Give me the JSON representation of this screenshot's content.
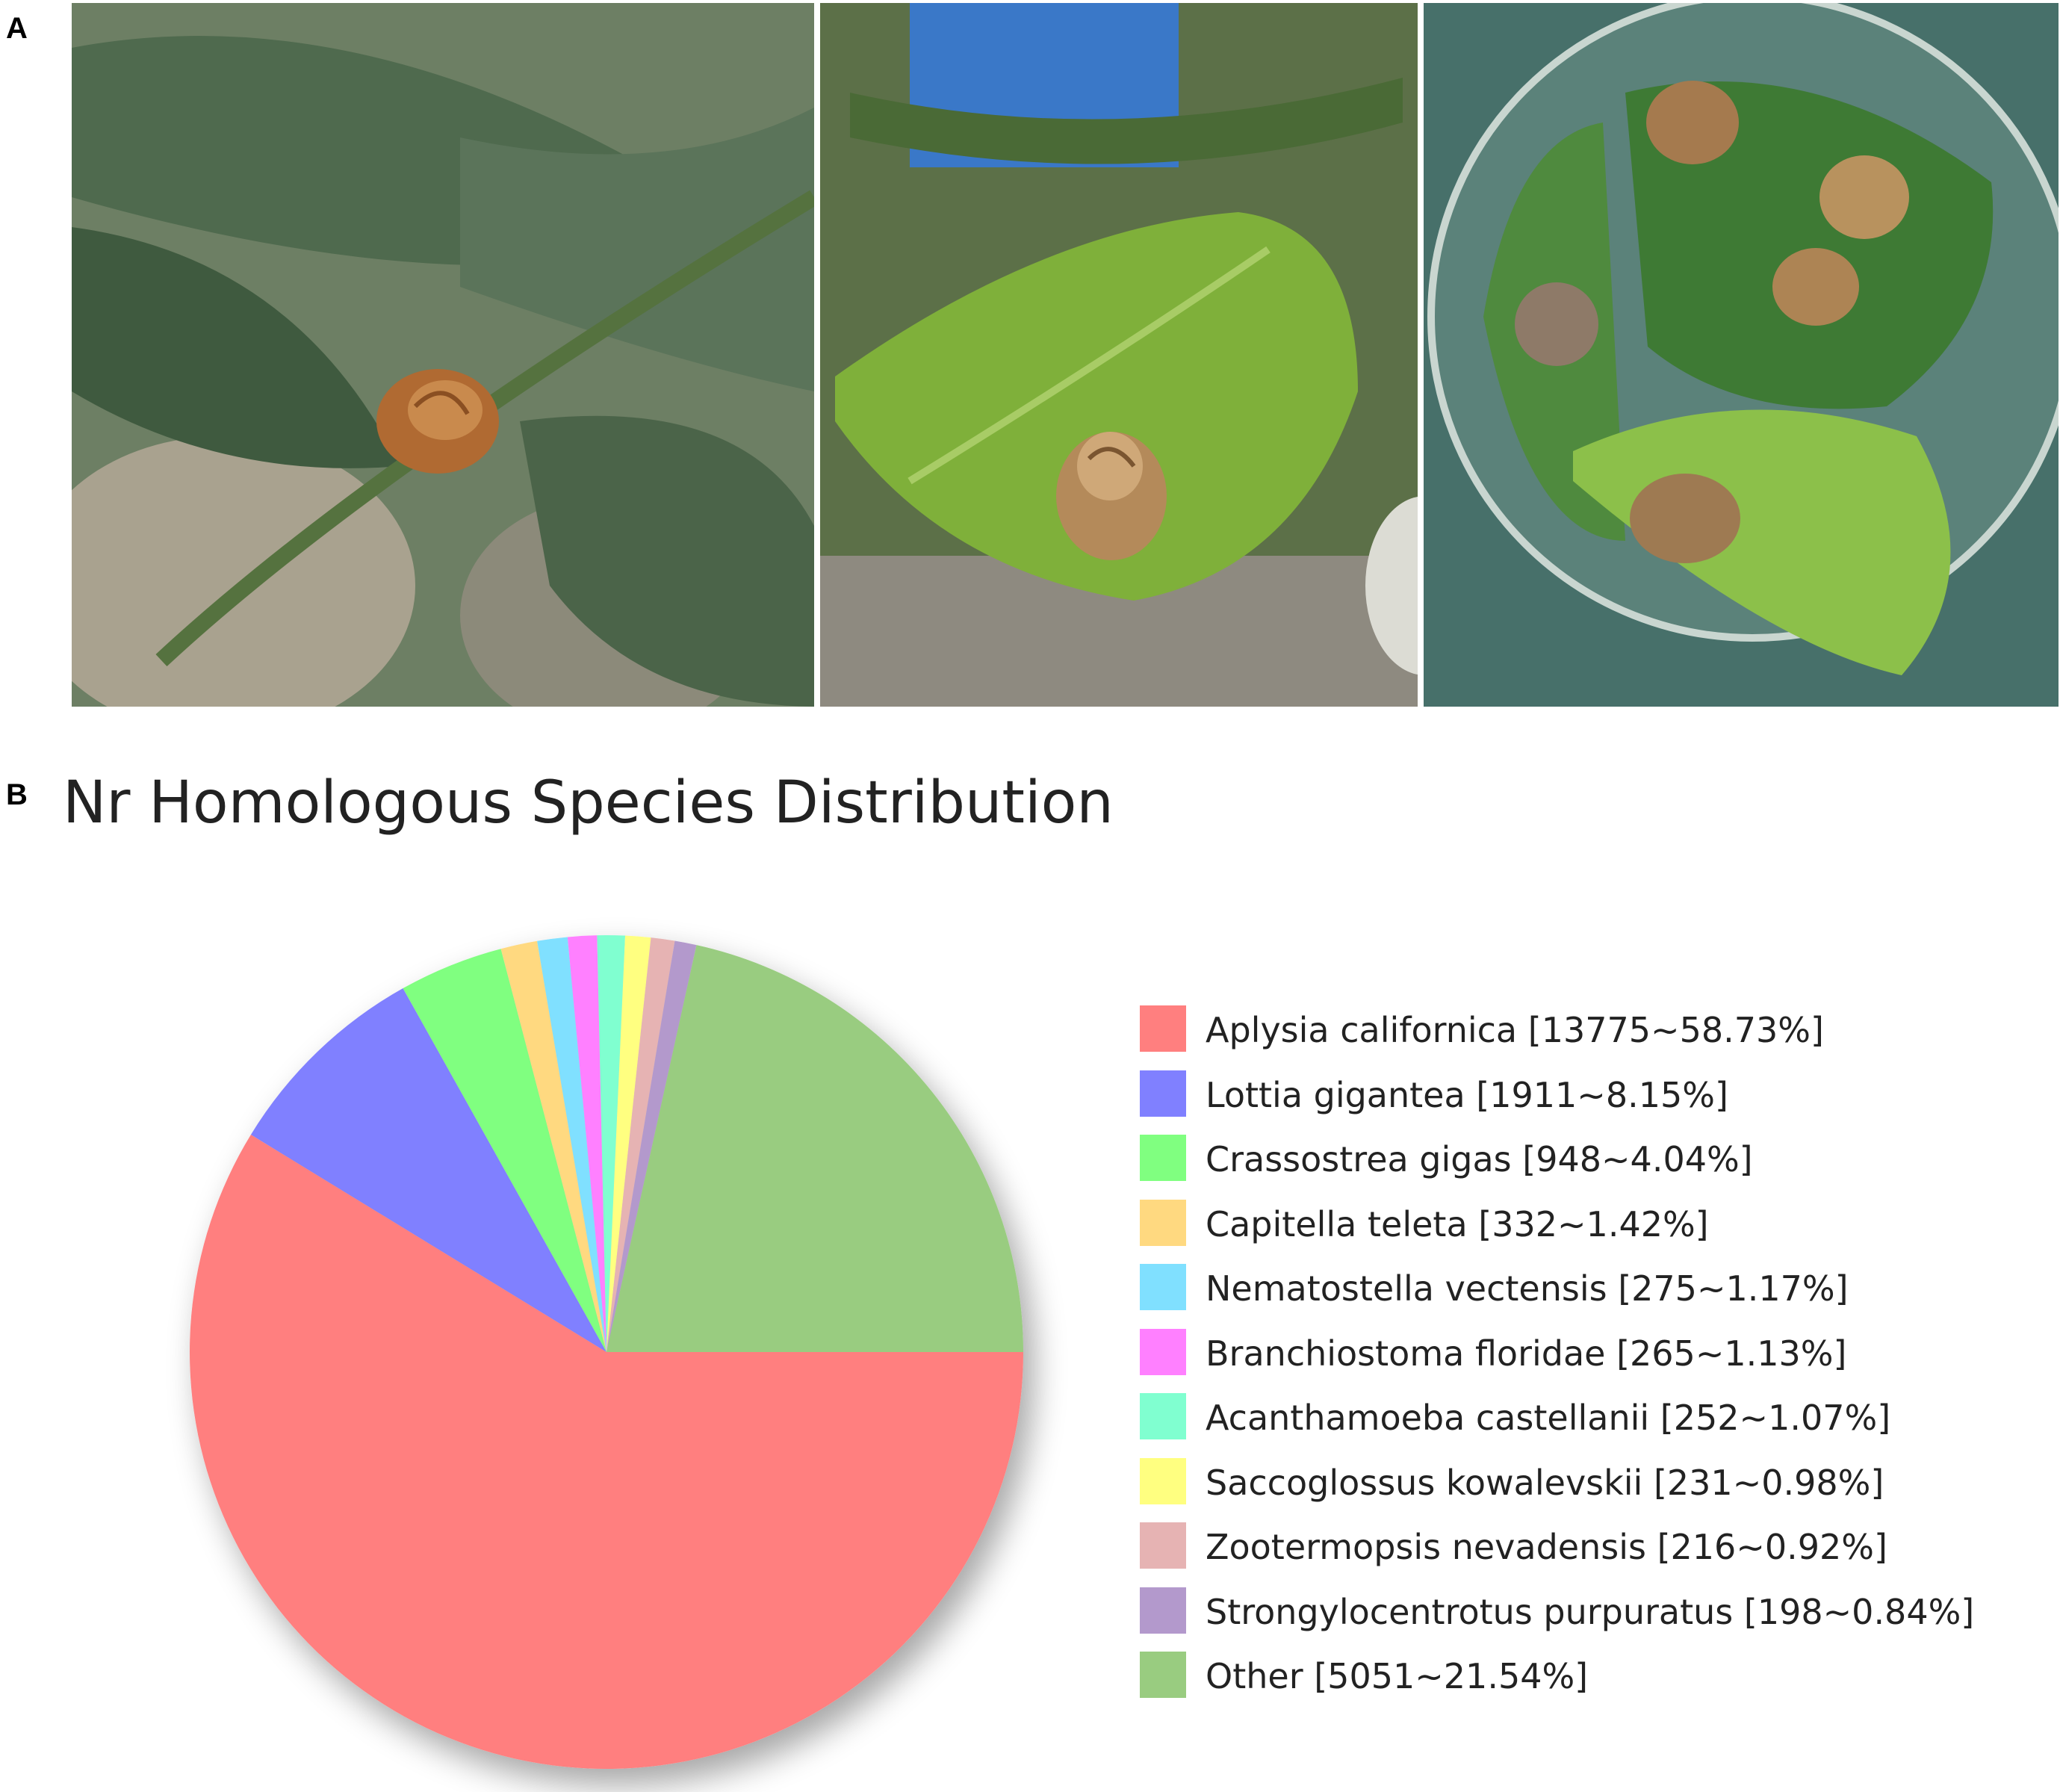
{
  "panels": {
    "a_label": "A",
    "b_label": "B"
  },
  "photos": [
    {
      "name": "snail-on-branch-photo",
      "icon": "snail-photo"
    },
    {
      "name": "snail-on-leaf-photo",
      "icon": "snail-photo"
    },
    {
      "name": "snails-in-petri-dish-photo",
      "icon": "snail-photo"
    }
  ],
  "chart_data": {
    "type": "pie",
    "title": "Nr Homologous Species Distribution",
    "start": "3 o'clock, clockwise",
    "slices": [
      {
        "label": "Aplysia californica [13775~58.73%]",
        "name": "Aplysia californica",
        "count": 13775,
        "percent": 58.73,
        "color": "#ff7f7f"
      },
      {
        "label": "Lottia gigantea [1911~8.15%]",
        "name": "Lottia gigantea",
        "count": 1911,
        "percent": 8.15,
        "color": "#8080ff"
      },
      {
        "label": "Crassostrea gigas [948~4.04%]",
        "name": "Crassostrea gigas",
        "count": 948,
        "percent": 4.04,
        "color": "#80ff80"
      },
      {
        "label": "Capitella teleta [332~1.42%]",
        "name": "Capitella teleta",
        "count": 332,
        "percent": 1.42,
        "color": "#ffd980"
      },
      {
        "label": "Nematostella vectensis [275~1.17%]",
        "name": "Nematostella vectensis",
        "count": 275,
        "percent": 1.17,
        "color": "#80e0ff"
      },
      {
        "label": "Branchiostoma floridae [265~1.13%]",
        "name": "Branchiostoma floridae",
        "count": 265,
        "percent": 1.13,
        "color": "#ff80ff"
      },
      {
        "label": "Acanthamoeba castellanii [252~1.07%]",
        "name": "Acanthamoeba castellanii",
        "count": 252,
        "percent": 1.07,
        "color": "#80ffd0"
      },
      {
        "label": "Saccoglossus kowalevskii [231~0.98%]",
        "name": "Saccoglossus kowalevskii",
        "count": 231,
        "percent": 0.98,
        "color": "#ffff80"
      },
      {
        "label": "Zootermopsis nevadensis [216~0.92%]",
        "name": "Zootermopsis nevadensis",
        "count": 216,
        "percent": 0.92,
        "color": "#e6b3b3"
      },
      {
        "label": "Strongylocentrotus purpuratus [198~0.84%]",
        "name": "Strongylocentrotus purpuratus",
        "count": 198,
        "percent": 0.84,
        "color": "#b399cc"
      },
      {
        "label": "Other [5051~21.54%]",
        "name": "Other",
        "count": 5051,
        "percent": 21.54,
        "color": "#99cc80"
      }
    ],
    "legend": "right"
  }
}
